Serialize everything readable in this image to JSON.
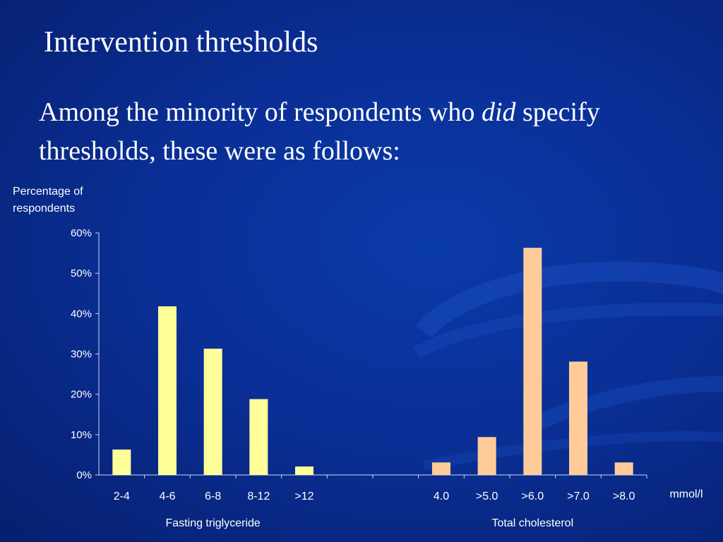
{
  "slide": {
    "title": "Intervention thresholds",
    "subtitle_before": "Among the minority of respondents who ",
    "subtitle_emphasis": "did",
    "subtitle_after": " specify thresholds, these were as follows:"
  },
  "chart_data": {
    "type": "bar",
    "ylabel": "Percentage of respondents",
    "xunit": "mmol/l",
    "ylim": [
      0,
      60
    ],
    "yticks": [
      "0%",
      "10%",
      "20%",
      "30%",
      "40%",
      "50%",
      "60%"
    ],
    "grid": false,
    "groups": [
      {
        "name": "Fasting triglyceride",
        "color": "#ffff99",
        "categories": [
          "2-4",
          "4-6",
          "6-8",
          "8-12",
          ">12"
        ],
        "values": [
          6.3,
          41.8,
          31.3,
          18.8,
          2.1
        ]
      },
      {
        "name": "Total cholesterol",
        "color": "#ffcc99",
        "categories": [
          "4.0",
          ">5.0",
          ">6.0",
          ">7.0",
          ">8.0"
        ],
        "values": [
          3.1,
          9.4,
          56.3,
          28.1,
          3.1
        ]
      }
    ]
  },
  "colors": {
    "background": "#0a2f96",
    "text": "#ffffff",
    "axis": "#d0d8f0"
  }
}
